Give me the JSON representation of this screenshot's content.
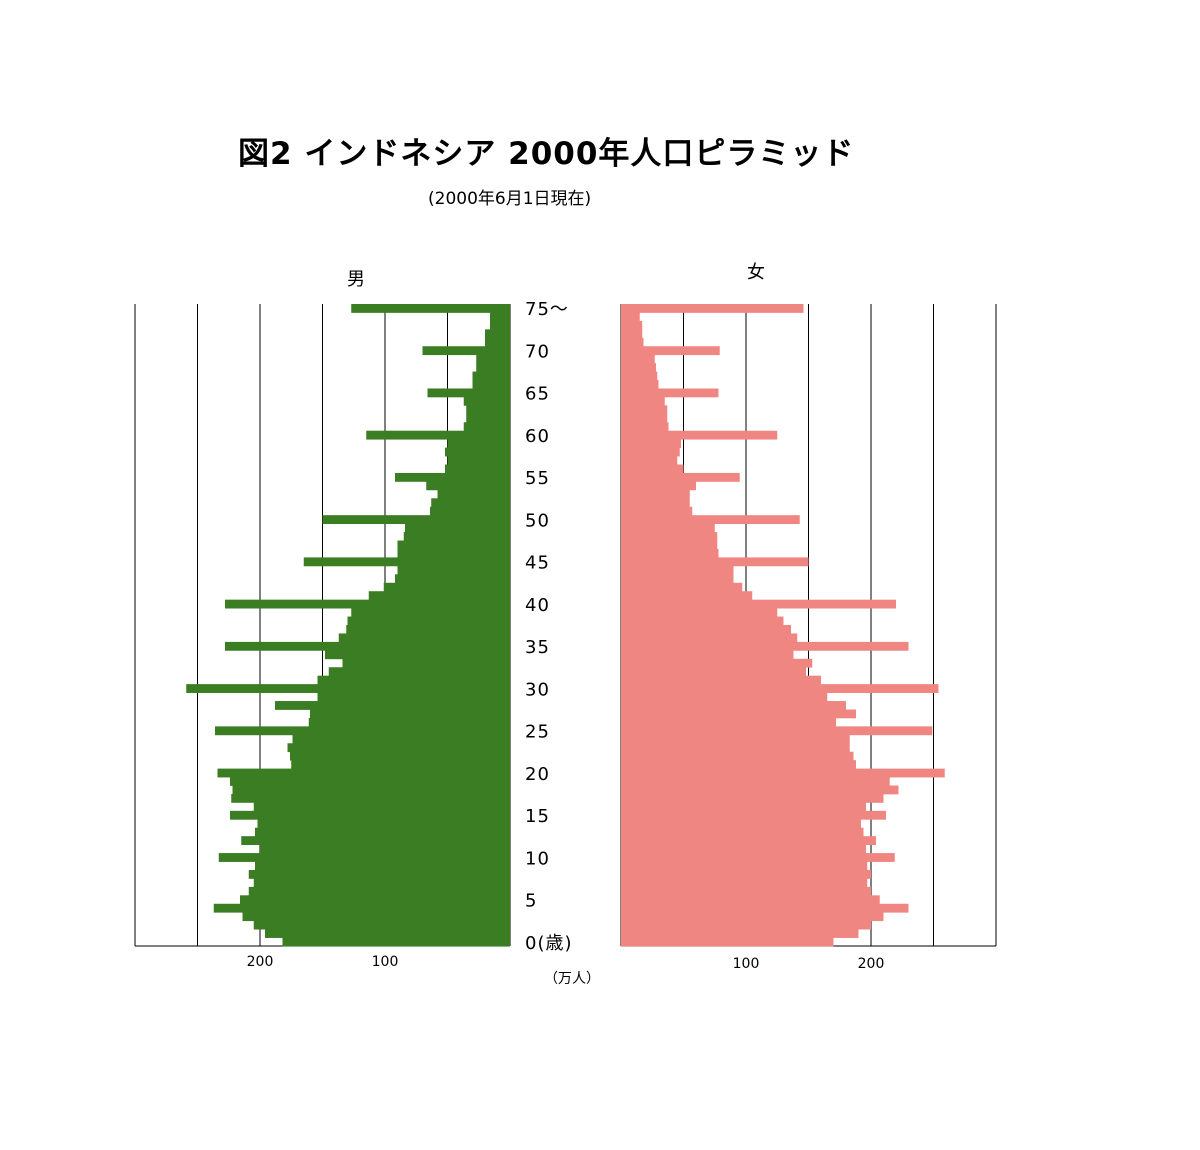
{
  "title": "図2  インドネシア  2000年人口ピラミッド",
  "subtitle": "(2000年6月1日現在)",
  "unit_label": "（万人）",
  "chart_data": {
    "type": "bar",
    "title": "図2  インドネシア  2000年人口ピラミッド",
    "subtitle": "(2000年6月1日現在)",
    "age_labels": [
      "0(歳)",
      "5",
      "10",
      "15",
      "20",
      "25",
      "30",
      "35",
      "40",
      "45",
      "50",
      "55",
      "60",
      "65",
      "70",
      "75～"
    ],
    "age_label_values": [
      0,
      5,
      10,
      15,
      20,
      25,
      30,
      35,
      40,
      45,
      50,
      55,
      60,
      65,
      70,
      75
    ],
    "ages": [
      0,
      1,
      2,
      3,
      4,
      5,
      6,
      7,
      8,
      9,
      10,
      11,
      12,
      13,
      14,
      15,
      16,
      17,
      18,
      19,
      20,
      21,
      22,
      23,
      24,
      25,
      26,
      27,
      28,
      29,
      30,
      31,
      32,
      33,
      34,
      35,
      36,
      37,
      38,
      39,
      40,
      41,
      42,
      43,
      44,
      45,
      46,
      47,
      48,
      49,
      50,
      51,
      52,
      53,
      54,
      55,
      56,
      57,
      58,
      59,
      60,
      61,
      62,
      63,
      64,
      65,
      66,
      67,
      68,
      69,
      70,
      71,
      72,
      73,
      74,
      75
    ],
    "xlim": [
      0,
      300
    ],
    "xticks": [
      100,
      200
    ],
    "colors": {
      "male": "#3a7d22",
      "female": "#f08682"
    },
    "series": [
      {
        "name": "男",
        "values": [
          182,
          196,
          205,
          214,
          237,
          216,
          209,
          205,
          209,
          204,
          233,
          200,
          215,
          204,
          202,
          224,
          205,
          223,
          222,
          224,
          234,
          175,
          176,
          178,
          174,
          236,
          161,
          160,
          188,
          154,
          259,
          154,
          145,
          134,
          148,
          228,
          137,
          131,
          130,
          127,
          228,
          113,
          101,
          92,
          90,
          165,
          90,
          90,
          85,
          84,
          150,
          64,
          63,
          58,
          67,
          92,
          52,
          50,
          52,
          50,
          115,
          37,
          35,
          35,
          37,
          66,
          30,
          30,
          27,
          27,
          70,
          20,
          20,
          16,
          16,
          127
        ]
      },
      {
        "name": "女",
        "values": [
          170,
          190,
          200,
          210,
          230,
          207,
          200,
          197,
          200,
          197,
          219,
          196,
          204,
          194,
          192,
          212,
          196,
          210,
          222,
          215,
          259,
          188,
          186,
          183,
          183,
          249,
          172,
          188,
          180,
          165,
          254,
          160,
          148,
          153,
          138,
          230,
          141,
          136,
          130,
          125,
          220,
          105,
          97,
          90,
          90,
          150,
          78,
          77,
          77,
          75,
          143,
          57,
          55,
          55,
          60,
          95,
          50,
          45,
          47,
          48,
          125,
          38,
          37,
          37,
          35,
          78,
          30,
          29,
          28,
          27,
          79,
          18,
          17,
          17,
          15,
          146
        ]
      }
    ]
  }
}
